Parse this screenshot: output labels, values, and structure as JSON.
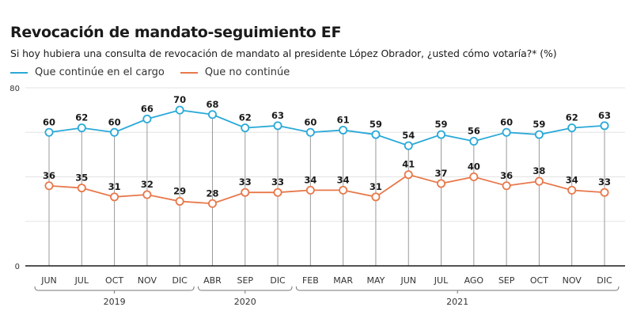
{
  "title": "Revocación de mandato-seguimiento EF",
  "subtitle": "Si hoy hubiera una consulta de revocación de mandato al presidente López Obrador, ¿usted cómo votaría?*  (%)",
  "legend": [
    {
      "label": "Que continúe en el cargo",
      "color": "#29a9d8"
    },
    {
      "label": "Que no continúe",
      "color": "#e8784a"
    }
  ],
  "chart_data": {
    "type": "line",
    "title": "Revocación de mandato-seguimiento EF",
    "xlabel": "",
    "ylabel": "%",
    "ylim": [
      0,
      80
    ],
    "yticks": [
      0,
      80
    ],
    "grid": true,
    "legend_position": "top-left",
    "categories": [
      "JUN",
      "JUL",
      "OCT",
      "NOV",
      "DIC",
      "ABR",
      "SEP",
      "DIC",
      "FEB",
      "MAR",
      "MAY",
      "JUN",
      "JUL",
      "AGO",
      "SEP",
      "OCT",
      "NOV",
      "DIC"
    ],
    "year_groups": [
      {
        "label": "2019",
        "start": 0,
        "end": 4
      },
      {
        "label": "2020",
        "start": 5,
        "end": 7
      },
      {
        "label": "2021",
        "start": 8,
        "end": 17
      }
    ],
    "series": [
      {
        "name": "Que continúe en el cargo",
        "color": "#29a9d8",
        "values": [
          60,
          62,
          60,
          66,
          70,
          68,
          62,
          63,
          60,
          61,
          59,
          54,
          59,
          56,
          60,
          59,
          62,
          63
        ]
      },
      {
        "name": "Que no continúe",
        "color": "#e8784a",
        "values": [
          36,
          35,
          31,
          32,
          29,
          28,
          33,
          33,
          34,
          34,
          31,
          41,
          37,
          40,
          36,
          38,
          34,
          33
        ]
      }
    ]
  }
}
